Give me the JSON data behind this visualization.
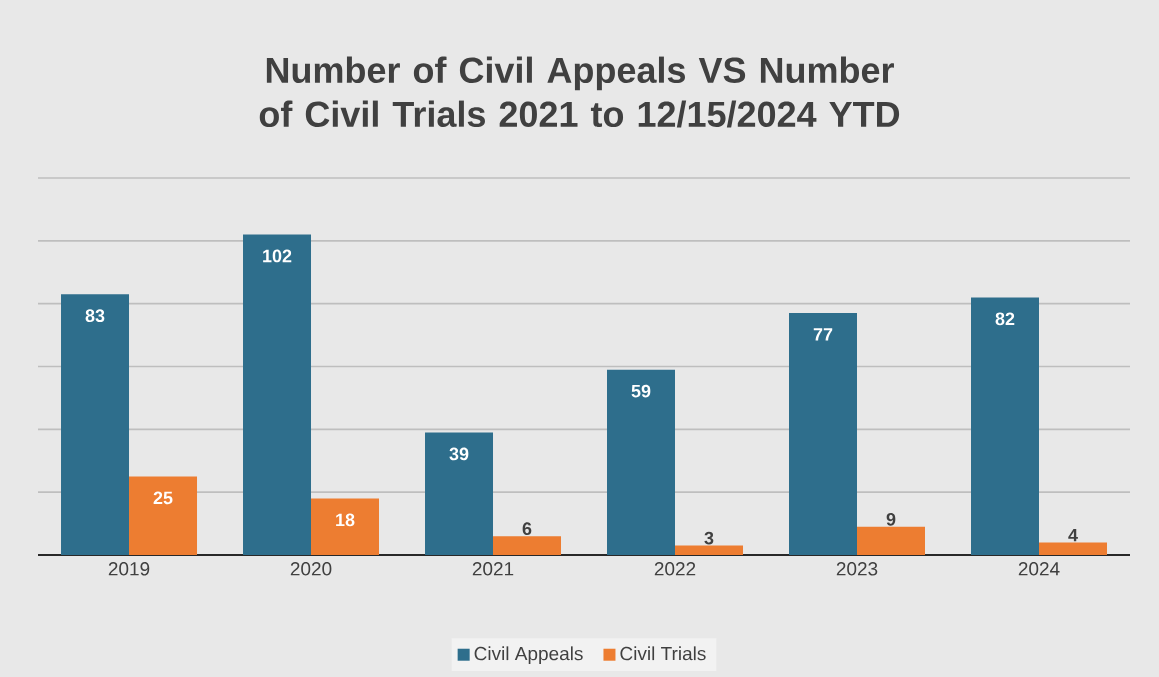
{
  "chart_data": {
    "type": "bar",
    "title": "Number of Civil Appeals VS Number of Civil Trials 2021 to 12/15/2024 YTD",
    "categories": [
      "2019",
      "2020",
      "2021",
      "2022",
      "2023",
      "2024"
    ],
    "series": [
      {
        "name": "Civil Appeals",
        "color": "#2e6e8c",
        "values": [
          83,
          102,
          39,
          59,
          77,
          82
        ]
      },
      {
        "name": "Civil Trials",
        "color": "#ed7d31",
        "values": [
          25,
          18,
          6,
          3,
          9,
          4
        ]
      }
    ],
    "yticks": [
      {
        "value": 0,
        "label": null
      },
      {
        "value": 20,
        "label": null
      },
      {
        "value": 40,
        "label": null
      },
      {
        "value": 60,
        "label": null
      },
      {
        "value": 80,
        "label": null
      },
      {
        "value": 100,
        "label": null
      },
      {
        "value": 120,
        "label": null
      }
    ],
    "tick_labels": "x",
    "grid": "y",
    "legend": "bottom",
    "data_labels": true
  }
}
